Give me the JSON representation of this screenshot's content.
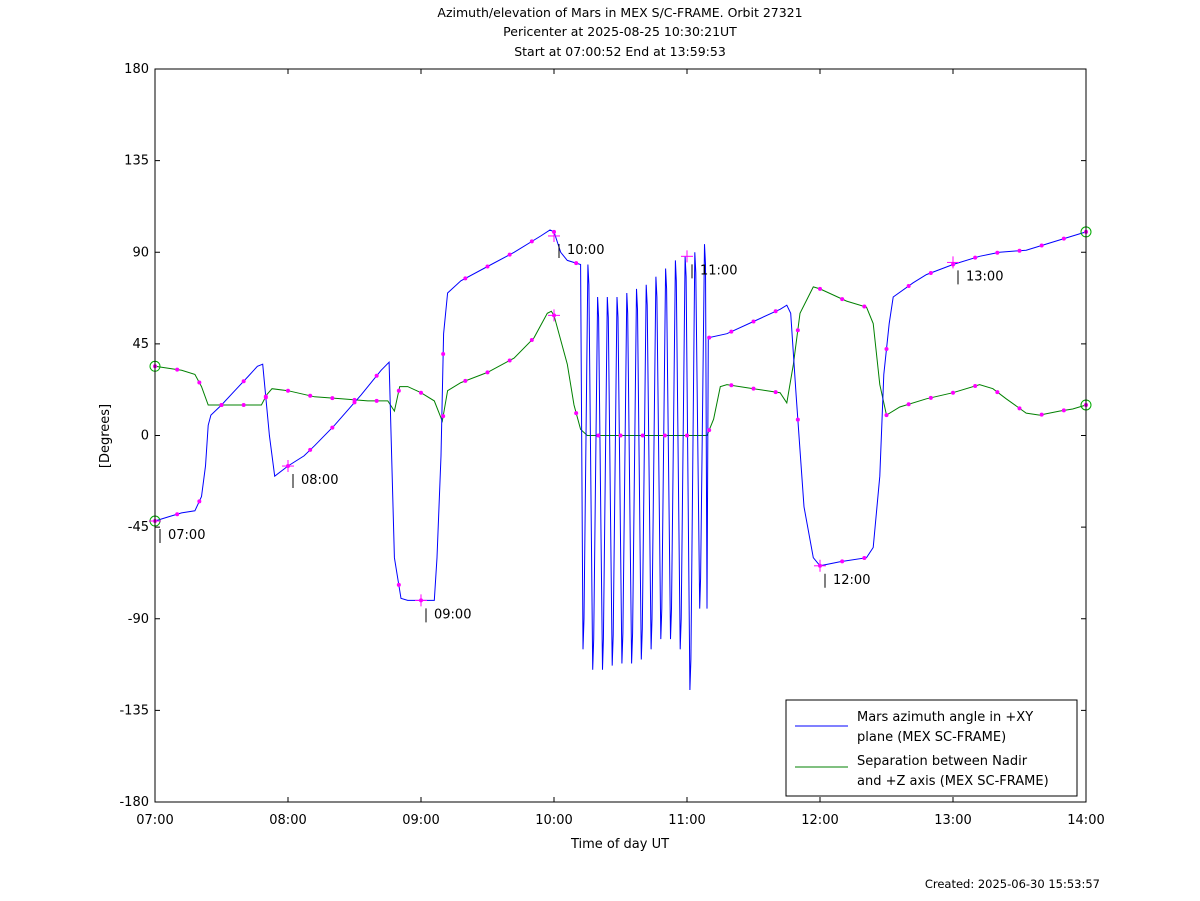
{
  "chart_data": {
    "type": "line",
    "title": [
      "Azimuth/elevation of Mars in MEX S/C-FRAME.  Orbit 27321",
      "Pericenter at 2025-08-25 10:30:21UT",
      "Start at 07:00:52 End at 13:59:53"
    ],
    "xlabel": "Time of day UT",
    "ylabel": "[Degrees]",
    "xlim": [
      7.0,
      14.0
    ],
    "ylim": [
      -180,
      180
    ],
    "xticks": [
      7,
      8,
      9,
      10,
      11,
      12,
      13,
      14
    ],
    "xtick_labels": [
      "07:00",
      "08:00",
      "09:00",
      "10:00",
      "11:00",
      "12:00",
      "13:00",
      "14:00"
    ],
    "yticks": [
      -180,
      -135,
      -90,
      -45,
      0,
      45,
      90,
      135,
      180
    ],
    "ytick_labels": [
      "-180",
      "-135",
      "-90",
      "-45",
      "0",
      "45",
      "90",
      "135",
      "180"
    ],
    "grid": false,
    "legend_position": "bottom-right",
    "series": [
      {
        "name": "Mars azimuth angle in +XY plane (MEX SC-FRAME)",
        "legend_lines": [
          "Mars azimuth angle in +XY",
          "plane (MEX SC-FRAME)"
        ],
        "color": "#0000ff",
        "points": [
          [
            7.0,
            -42
          ],
          [
            7.1,
            -40
          ],
          [
            7.2,
            -38
          ],
          [
            7.3,
            -37
          ],
          [
            7.35,
            -30
          ],
          [
            7.38,
            -15
          ],
          [
            7.4,
            5
          ],
          [
            7.42,
            10
          ],
          [
            7.5,
            15
          ],
          [
            7.6,
            22
          ],
          [
            7.7,
            29
          ],
          [
            7.77,
            34
          ],
          [
            7.81,
            35
          ],
          [
            7.86,
            0
          ],
          [
            7.9,
            -20
          ],
          [
            8.0,
            -15
          ],
          [
            8.12,
            -10
          ],
          [
            8.2,
            -5
          ],
          [
            8.35,
            5
          ],
          [
            8.55,
            20
          ],
          [
            8.7,
            32
          ],
          [
            8.76,
            36
          ],
          [
            8.8,
            -60
          ],
          [
            8.85,
            -80
          ],
          [
            8.9,
            -81
          ],
          [
            9.0,
            -81
          ],
          [
            9.1,
            -81
          ],
          [
            9.12,
            -60
          ],
          [
            9.15,
            -10
          ],
          [
            9.17,
            50
          ],
          [
            9.2,
            70
          ],
          [
            9.3,
            76
          ],
          [
            9.5,
            83
          ],
          [
            9.7,
            90
          ],
          [
            9.9,
            98
          ],
          [
            9.97,
            101
          ],
          [
            10.0,
            100
          ],
          [
            10.05,
            90
          ],
          [
            10.1,
            86
          ],
          [
            10.2,
            84
          ]
        ],
        "osc_section": [
          10.2,
          11.15
        ],
        "osc_top": [
          84,
          68,
          68,
          68,
          70,
          72,
          74,
          78,
          82,
          86,
          88,
          90,
          94
        ],
        "osc_bottom": [
          -105,
          -115,
          -115,
          -113,
          -112,
          -112,
          -110,
          -105,
          -100,
          -100,
          -105,
          -125,
          -85
        ],
        "points_after": [
          [
            11.15,
            -85
          ],
          [
            11.16,
            48
          ],
          [
            11.3,
            50
          ],
          [
            11.5,
            56
          ],
          [
            11.7,
            62
          ],
          [
            11.75,
            64
          ],
          [
            11.78,
            60
          ],
          [
            11.82,
            20
          ],
          [
            11.88,
            -35
          ],
          [
            11.95,
            -60
          ],
          [
            12.0,
            -64
          ],
          [
            12.15,
            -62
          ],
          [
            12.35,
            -60
          ],
          [
            12.4,
            -55
          ],
          [
            12.45,
            -20
          ],
          [
            12.48,
            30
          ],
          [
            12.52,
            55
          ],
          [
            12.55,
            68
          ],
          [
            12.7,
            75
          ],
          [
            12.8,
            79
          ],
          [
            13.0,
            84
          ],
          [
            13.2,
            88
          ],
          [
            13.35,
            90
          ],
          [
            13.55,
            91
          ],
          [
            13.7,
            94
          ],
          [
            13.85,
            97
          ],
          [
            14.0,
            100
          ]
        ],
        "markers": [
          [
            7.0,
            -42,
            "07:00"
          ],
          [
            8.0,
            -15,
            "08:00"
          ],
          [
            9.0,
            -81,
            "09:00"
          ],
          [
            10.0,
            98,
            "10:00"
          ],
          [
            11.0,
            88,
            "11:00"
          ],
          [
            12.0,
            -64,
            "12:00"
          ],
          [
            13.0,
            85,
            "13:00"
          ]
        ]
      },
      {
        "name": "Separation between Nadir and +Z axis (MEX SC-FRAME)",
        "legend_lines": [
          "Separation between Nadir",
          "and +Z axis (MEX SC-FRAME)"
        ],
        "color": "#008000",
        "points": [
          [
            7.0,
            34
          ],
          [
            7.1,
            33
          ],
          [
            7.2,
            32
          ],
          [
            7.3,
            30
          ],
          [
            7.35,
            24
          ],
          [
            7.4,
            15
          ],
          [
            7.5,
            15
          ],
          [
            7.6,
            15
          ],
          [
            7.7,
            15
          ],
          [
            7.8,
            15
          ],
          [
            7.84,
            20
          ],
          [
            7.88,
            23
          ],
          [
            8.0,
            22
          ],
          [
            8.2,
            19
          ],
          [
            8.4,
            18
          ],
          [
            8.6,
            17
          ],
          [
            8.75,
            17
          ],
          [
            8.8,
            12
          ],
          [
            8.84,
            24
          ],
          [
            8.9,
            24
          ],
          [
            9.0,
            21
          ],
          [
            9.1,
            17
          ],
          [
            9.16,
            7
          ],
          [
            9.2,
            22
          ],
          [
            9.3,
            26
          ],
          [
            9.5,
            31
          ],
          [
            9.7,
            38
          ],
          [
            9.85,
            48
          ],
          [
            9.95,
            60
          ],
          [
            9.98,
            61
          ],
          [
            10.0,
            59
          ],
          [
            10.1,
            35
          ],
          [
            10.15,
            15
          ],
          [
            10.2,
            3
          ],
          [
            10.25,
            0
          ],
          [
            10.5,
            0
          ],
          [
            10.8,
            0
          ],
          [
            11.0,
            0
          ],
          [
            11.15,
            0
          ],
          [
            11.2,
            8
          ],
          [
            11.25,
            24
          ],
          [
            11.3,
            25
          ],
          [
            11.5,
            23
          ],
          [
            11.7,
            21
          ],
          [
            11.75,
            16
          ],
          [
            11.8,
            35
          ],
          [
            11.85,
            60
          ],
          [
            11.95,
            73
          ],
          [
            12.0,
            72
          ],
          [
            12.2,
            66
          ],
          [
            12.35,
            63
          ],
          [
            12.4,
            55
          ],
          [
            12.45,
            25
          ],
          [
            12.5,
            10
          ],
          [
            12.6,
            14
          ],
          [
            12.8,
            18
          ],
          [
            13.0,
            21
          ],
          [
            13.2,
            25
          ],
          [
            13.3,
            23
          ],
          [
            13.4,
            18
          ],
          [
            13.55,
            11
          ],
          [
            13.65,
            10
          ],
          [
            13.8,
            12
          ],
          [
            13.9,
            13
          ],
          [
            14.0,
            15
          ]
        ]
      }
    ],
    "created_label": "Created: 2025-06-30 15:53:57"
  }
}
